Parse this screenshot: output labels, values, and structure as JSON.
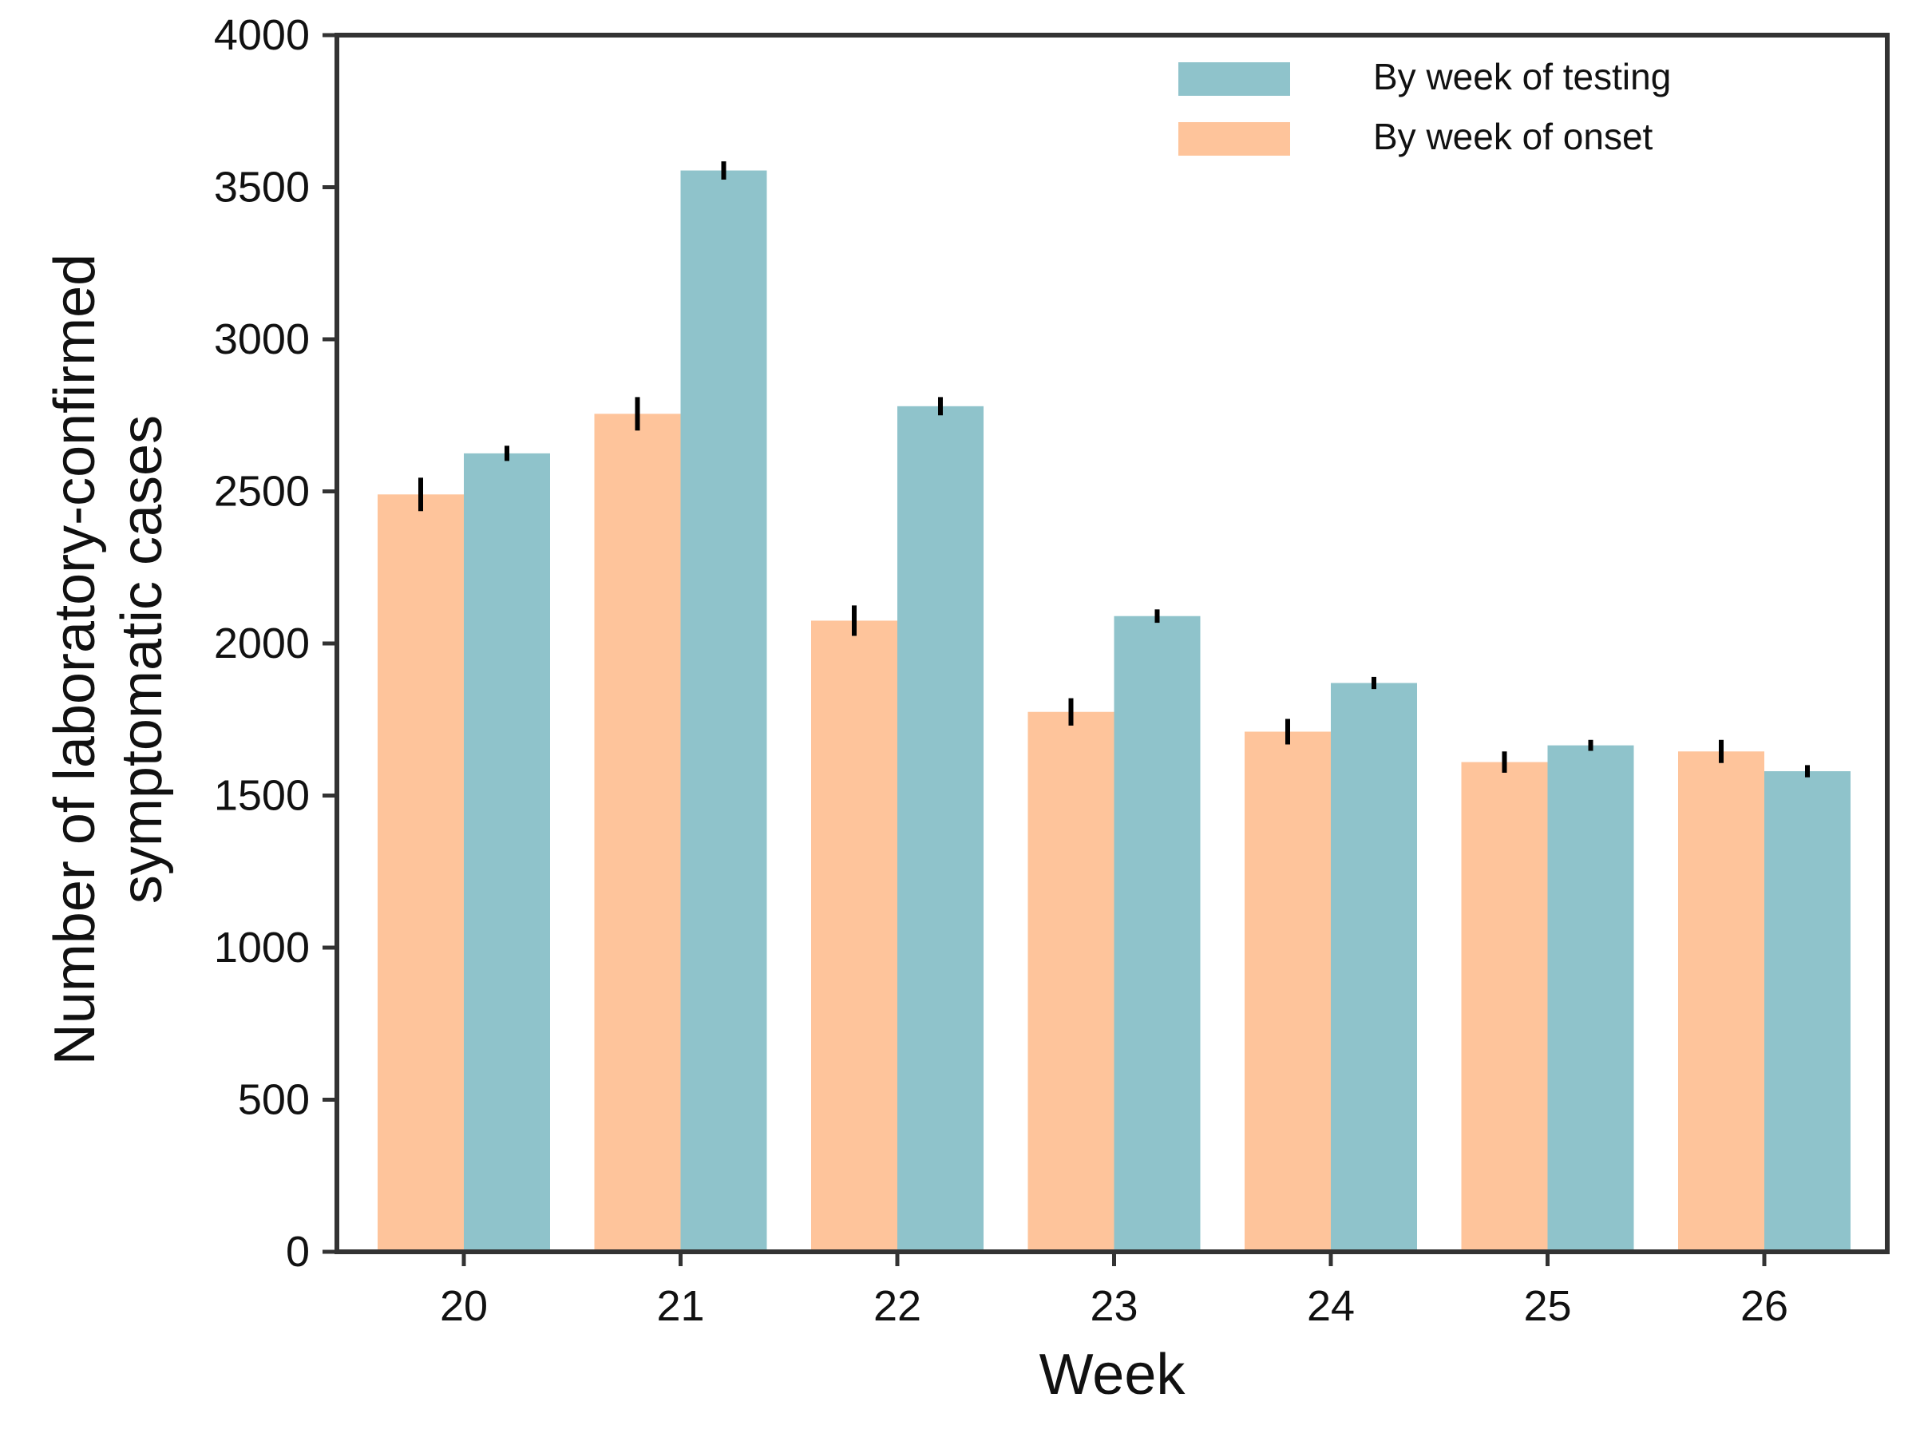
{
  "chart_data": {
    "type": "bar",
    "title": "",
    "xlabel": "Week",
    "ylabel": "Number of laboratory-confirmed symptomatic cases",
    "ylabel_lines": [
      "Number of laboratory-confirmed",
      "symptomatic cases"
    ],
    "ylim": [
      0,
      4000
    ],
    "yticks": [
      0,
      500,
      1000,
      1500,
      2000,
      2500,
      3000,
      3500,
      4000
    ],
    "categories": [
      "20",
      "21",
      "22",
      "23",
      "24",
      "25",
      "26"
    ],
    "legend_position": "top-right",
    "grid": false,
    "series": [
      {
        "name": "By week of onset",
        "color": "#fec49b",
        "values": [
          2490,
          2755,
          2075,
          1775,
          1710,
          1610,
          1645
        ],
        "error": [
          55,
          55,
          50,
          45,
          42,
          35,
          38
        ]
      },
      {
        "name": "By week of testing",
        "color": "#8fc3cb",
        "values": [
          2625,
          3555,
          2780,
          2090,
          1870,
          1665,
          1580
        ],
        "error": [
          25,
          30,
          30,
          22,
          20,
          18,
          20
        ]
      }
    ],
    "legend_order": [
      "By week of testing",
      "By week of onset"
    ],
    "error_bar_color": "#000000"
  }
}
